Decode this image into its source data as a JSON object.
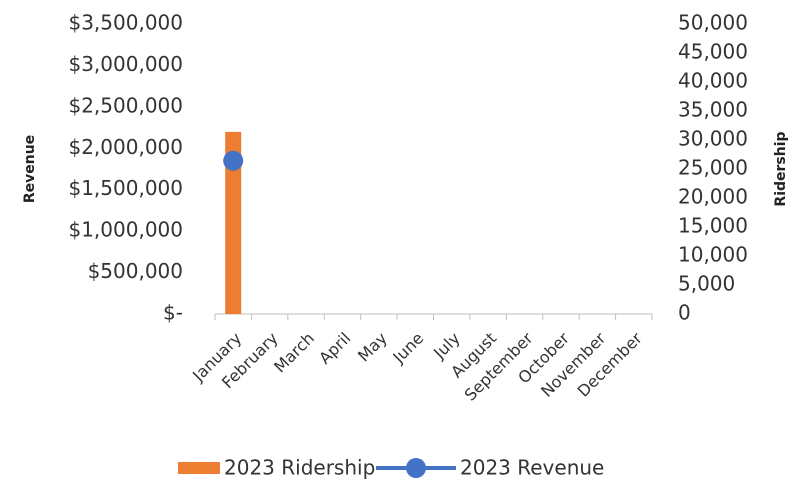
{
  "chart_data": {
    "type": "bar",
    "categories": [
      "January",
      "February",
      "March",
      "April",
      "May",
      "June",
      "July",
      "August",
      "September",
      "October",
      "November",
      "December"
    ],
    "ylabel": "Revenue",
    "y2label": "Ridership",
    "ylim": [
      0,
      3500000
    ],
    "yticks": [
      {
        "value": 0,
        "label": "$-"
      },
      {
        "value": 500000,
        "label": "$500,000"
      },
      {
        "value": 1000000,
        "label": "$1,000,000"
      },
      {
        "value": 1500000,
        "label": "$1,500,000"
      },
      {
        "value": 2000000,
        "label": "$2,000,000"
      },
      {
        "value": 2500000,
        "label": "$2,500,000"
      },
      {
        "value": 3000000,
        "label": "$3,000,000"
      },
      {
        "value": 3500000,
        "label": "$3,500,000"
      }
    ],
    "y2lim": [
      0,
      50000
    ],
    "y2ticks": [
      0,
      {
        "value": 5000,
        "label": "5,000"
      },
      {
        "value": 10000,
        "label": "10,000"
      },
      {
        "value": 15000,
        "label": "15,000"
      },
      {
        "value": 20000,
        "label": "20,000"
      },
      {
        "value": 25000,
        "label": "25,000"
      },
      {
        "value": 30000,
        "label": "30,000"
      },
      {
        "value": 35000,
        "label": "35,000"
      },
      {
        "value": 40000,
        "label": "40,000"
      },
      {
        "value": 45000,
        "label": "45,000"
      },
      {
        "value": 50000,
        "label": "50,000"
      }
    ],
    "series": [
      {
        "name": "2023 Ridership",
        "type": "bar",
        "axis": "y2",
        "color": "#ed7d31",
        "values": [
          31400,
          null,
          null,
          null,
          null,
          null,
          null,
          null,
          null,
          null,
          null,
          null
        ]
      },
      {
        "name": "2023 Revenue",
        "type": "line",
        "axis": "y",
        "color": "#4472c4",
        "values": [
          1850000,
          null,
          null,
          null,
          null,
          null,
          null,
          null,
          null,
          null,
          null,
          null
        ]
      }
    ]
  }
}
